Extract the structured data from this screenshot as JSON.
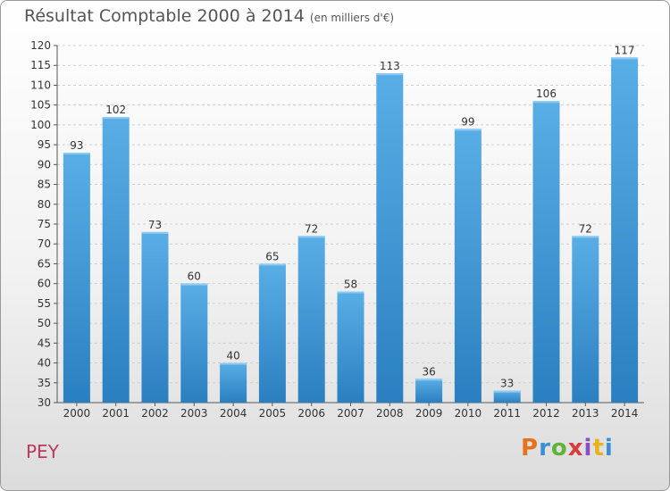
{
  "chart_data": {
    "type": "bar",
    "title": "Résultat Comptable 2000 à 2014",
    "unit_label": "(en milliers d'€)",
    "xlabel": "",
    "ylabel": "",
    "categories": [
      "2000",
      "2001",
      "2002",
      "2003",
      "2004",
      "2005",
      "2006",
      "2007",
      "2008",
      "2009",
      "2010",
      "2011",
      "2012",
      "2013",
      "2014"
    ],
    "values": [
      93,
      102,
      73,
      60,
      40,
      65,
      72,
      58,
      113,
      36,
      99,
      33,
      106,
      72,
      117
    ],
    "ylim": [
      30,
      120
    ],
    "yticks": [
      30,
      35,
      40,
      45,
      50,
      55,
      60,
      65,
      70,
      75,
      80,
      85,
      90,
      95,
      100,
      105,
      110,
      115,
      120
    ],
    "grid": true,
    "bar_color_top": "#5aaee6",
    "bar_color_bottom": "#2a7fc0"
  },
  "commune": "PEY",
  "logo": {
    "letters": [
      "P",
      "r",
      "o",
      "x",
      "i",
      "t",
      "i"
    ],
    "colors": [
      "#e8711c",
      "#3a8fd6",
      "#62b33a",
      "#d93a3a",
      "#8a4fc7",
      "#e8b21c",
      "#3a8fd6"
    ]
  }
}
